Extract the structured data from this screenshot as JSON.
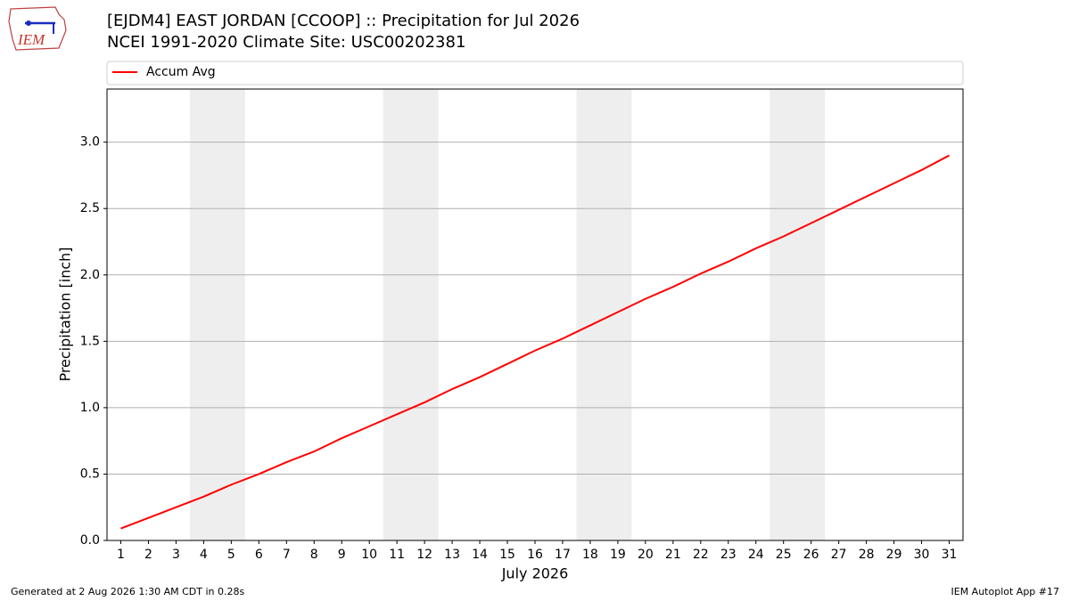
{
  "logo_text": "IEM",
  "chart_data": {
    "type": "line",
    "title": "[EJDM4] EAST JORDAN [CCOOP] :: Precipitation for Jul 2026",
    "subtitle": "NCEI 1991-2020 Climate Site: USC00202381",
    "x_label": "July 2026",
    "y_label": "Precipitation [inch]",
    "x": [
      1,
      2,
      3,
      4,
      5,
      6,
      7,
      8,
      9,
      10,
      11,
      12,
      13,
      14,
      15,
      16,
      17,
      18,
      19,
      20,
      21,
      22,
      23,
      24,
      25,
      26,
      27,
      28,
      29,
      30,
      31
    ],
    "series": [
      {
        "name": "Accum Avg",
        "color": "#ff0000",
        "values": [
          0.09,
          0.17,
          0.25,
          0.33,
          0.42,
          0.5,
          0.59,
          0.67,
          0.77,
          0.86,
          0.95,
          1.04,
          1.14,
          1.23,
          1.33,
          1.43,
          1.52,
          1.62,
          1.72,
          1.82,
          1.91,
          2.01,
          2.1,
          2.2,
          2.29,
          2.39,
          2.49,
          2.59,
          2.69,
          2.79,
          2.9
        ]
      }
    ],
    "xlim": [
      0.5,
      31.5
    ],
    "ylim": [
      0,
      3.4
    ],
    "xticks": [
      1,
      2,
      3,
      4,
      5,
      6,
      7,
      8,
      9,
      10,
      11,
      12,
      13,
      14,
      15,
      16,
      17,
      18,
      19,
      20,
      21,
      22,
      23,
      24,
      25,
      26,
      27,
      28,
      29,
      30,
      31
    ],
    "yticks": [
      {
        "value": 0,
        "label": "0.0"
      },
      0.5,
      {
        "value": 1,
        "label": "1.0"
      },
      1.5,
      {
        "value": 2,
        "label": "2.0"
      },
      2.5,
      {
        "value": 3,
        "label": "3.0"
      }
    ],
    "shaded_x_ranges": [
      [
        3.5,
        5.5
      ],
      [
        10.5,
        12.5
      ],
      [
        17.5,
        19.5
      ],
      [
        24.5,
        26.5
      ]
    ],
    "shade_color": "#eeeeee",
    "grid": "y",
    "legend": "top",
    "footer_left": "Generated at 2 Aug 2026 1:30 AM CDT in 0.28s",
    "footer_right": "IEM Autoplot App #17"
  }
}
